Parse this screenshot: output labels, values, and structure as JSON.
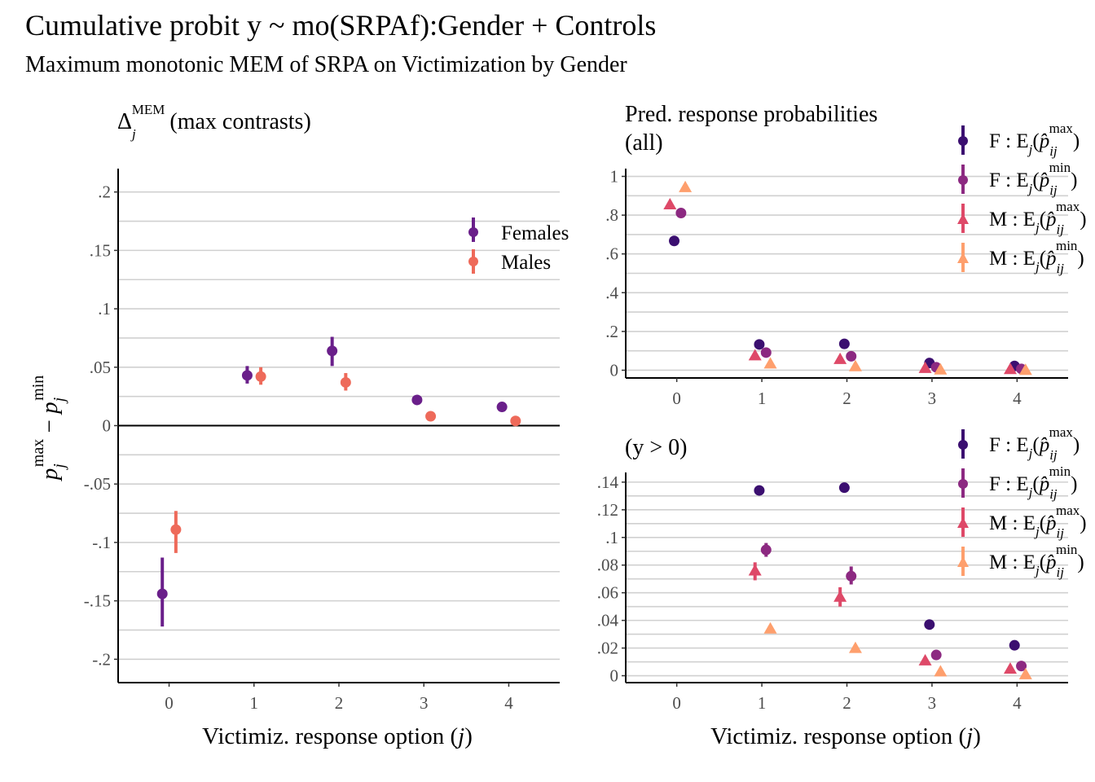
{
  "title": "Cumulative probit y ~ mo(SRPAf):Gender + Controls",
  "subtitle": "Maximum monotonic MEM of SRPA on Victimization by Gender",
  "colors": {
    "females": "#6a1f8a",
    "males": "#ee6a5a",
    "f_max": "#3b0f70",
    "f_min": "#8c2981",
    "m_max": "#de4968",
    "m_min": "#fe9f6d",
    "grid": "#d0d0d0"
  },
  "chart_data": [
    {
      "id": "left",
      "type": "scatter",
      "panel_title": "Δ_j^MEM (max contrasts)",
      "ylabel": "p_j^max − p_j^min",
      "xlabel": "Victimiz. response option (j)",
      "x_ticks": [
        "0",
        "1",
        "2",
        "3",
        "4"
      ],
      "y_ticks": [
        ".2",
        ".15",
        ".1",
        ".05",
        "0",
        "-.05",
        "-.1",
        "-.15",
        "-.2"
      ],
      "ylim": [
        -0.22,
        0.22
      ],
      "xlim": [
        -0.6,
        4.6
      ],
      "reference_line": 0,
      "grid": true,
      "legend_position": "top-right",
      "series": [
        {
          "name": "Females",
          "marker": "circle",
          "color": "#6a1f8a",
          "offset": -0.08,
          "x": [
            0,
            1,
            2,
            3,
            4
          ],
          "y": [
            -0.144,
            0.043,
            0.064,
            0.022,
            0.016
          ],
          "lo": [
            -0.172,
            0.036,
            0.051,
            0.019,
            0.013
          ],
          "hi": [
            -0.113,
            0.051,
            0.076,
            0.025,
            0.019
          ]
        },
        {
          "name": "Males",
          "marker": "circle",
          "color": "#ee6a5a",
          "offset": 0.08,
          "x": [
            0,
            1,
            2,
            3,
            4
          ],
          "y": [
            -0.089,
            0.042,
            0.037,
            0.008,
            0.004
          ],
          "lo": [
            -0.109,
            0.035,
            0.03,
            0.006,
            0.002
          ],
          "hi": [
            -0.073,
            0.05,
            0.045,
            0.01,
            0.006
          ]
        }
      ]
    },
    {
      "id": "right_top",
      "type": "scatter",
      "panel_title_lines": [
        "Pred. response probabilities",
        "(all)"
      ],
      "xlabel": "",
      "x_ticks": [
        "0",
        "1",
        "2",
        "3",
        "4"
      ],
      "y_ticks": [
        "1",
        ".8",
        ".6",
        ".4",
        ".2",
        "0"
      ],
      "ylim": [
        -0.04,
        1.04
      ],
      "xlim": [
        -0.6,
        4.6
      ],
      "grid": true,
      "legend_position": "top-right",
      "series": [
        {
          "name": "F : E_j(p̂_ij^max)",
          "marker": "circle",
          "color": "#3b0f70",
          "offset": -0.03,
          "x": [
            0,
            1,
            2,
            3,
            4
          ],
          "y": [
            0.667,
            0.133,
            0.136,
            0.037,
            0.022
          ]
        },
        {
          "name": "F : E_j(p̂_ij^min)",
          "marker": "circle",
          "color": "#8c2981",
          "offset": 0.05,
          "x": [
            0,
            1,
            2,
            3,
            4
          ],
          "y": [
            0.811,
            0.091,
            0.072,
            0.015,
            0.007
          ]
        },
        {
          "name": "M : E_j(p̂_ij^max)",
          "marker": "triangle",
          "color": "#de4968",
          "offset": -0.08,
          "x": [
            0,
            1,
            2,
            3,
            4
          ],
          "y": [
            0.855,
            0.076,
            0.057,
            0.011,
            0.005
          ]
        },
        {
          "name": "M : E_j(p̂_ij^min)",
          "marker": "triangle",
          "color": "#fe9f6d",
          "offset": 0.1,
          "x": [
            0,
            1,
            2,
            3,
            4
          ],
          "y": [
            0.944,
            0.034,
            0.02,
            0.003,
            0.001
          ]
        }
      ]
    },
    {
      "id": "right_bottom",
      "type": "scatter",
      "panel_title_lines": [
        "(y > 0)"
      ],
      "xlabel": "Victimiz. response option (j)",
      "x_ticks": [
        "0",
        "1",
        "2",
        "3",
        "4"
      ],
      "y_ticks": [
        ".14",
        ".12",
        ".1",
        ".08",
        ".06",
        ".04",
        ".02",
        "0"
      ],
      "ylim": [
        -0.005,
        0.147
      ],
      "xlim": [
        -0.6,
        4.6
      ],
      "grid": true,
      "legend_position": "top-right",
      "series": [
        {
          "name": "F : E_j(p̂_ij^max)",
          "marker": "circle",
          "color": "#3b0f70",
          "offset": -0.03,
          "x": [
            1,
            2,
            3,
            4
          ],
          "y": [
            0.134,
            0.136,
            0.037,
            0.022
          ],
          "lo": [
            0.133,
            0.135,
            0.036,
            0.021
          ],
          "hi": [
            0.135,
            0.137,
            0.038,
            0.023
          ]
        },
        {
          "name": "F : E_j(p̂_ij^min)",
          "marker": "circle",
          "color": "#8c2981",
          "offset": 0.05,
          "x": [
            1,
            2,
            3,
            4
          ],
          "y": [
            0.091,
            0.072,
            0.015,
            0.007
          ],
          "lo": [
            0.086,
            0.066,
            0.013,
            0.006
          ],
          "hi": [
            0.096,
            0.079,
            0.017,
            0.008
          ]
        },
        {
          "name": "M : E_j(p̂_ij^max)",
          "marker": "triangle",
          "color": "#de4968",
          "offset": -0.08,
          "x": [
            1,
            2,
            3,
            4
          ],
          "y": [
            0.076,
            0.057,
            0.011,
            0.005
          ],
          "lo": [
            0.069,
            0.05,
            0.009,
            0.004
          ],
          "hi": [
            0.082,
            0.064,
            0.013,
            0.006
          ]
        },
        {
          "name": "M : E_j(p̂_ij^min)",
          "marker": "triangle",
          "color": "#fe9f6d",
          "offset": 0.1,
          "x": [
            1,
            2,
            3,
            4
          ],
          "y": [
            0.034,
            0.02,
            0.003,
            0.001
          ],
          "lo": [
            0.033,
            0.019,
            0.002,
            0.0
          ],
          "hi": [
            0.035,
            0.021,
            0.004,
            0.002
          ]
        }
      ]
    }
  ]
}
